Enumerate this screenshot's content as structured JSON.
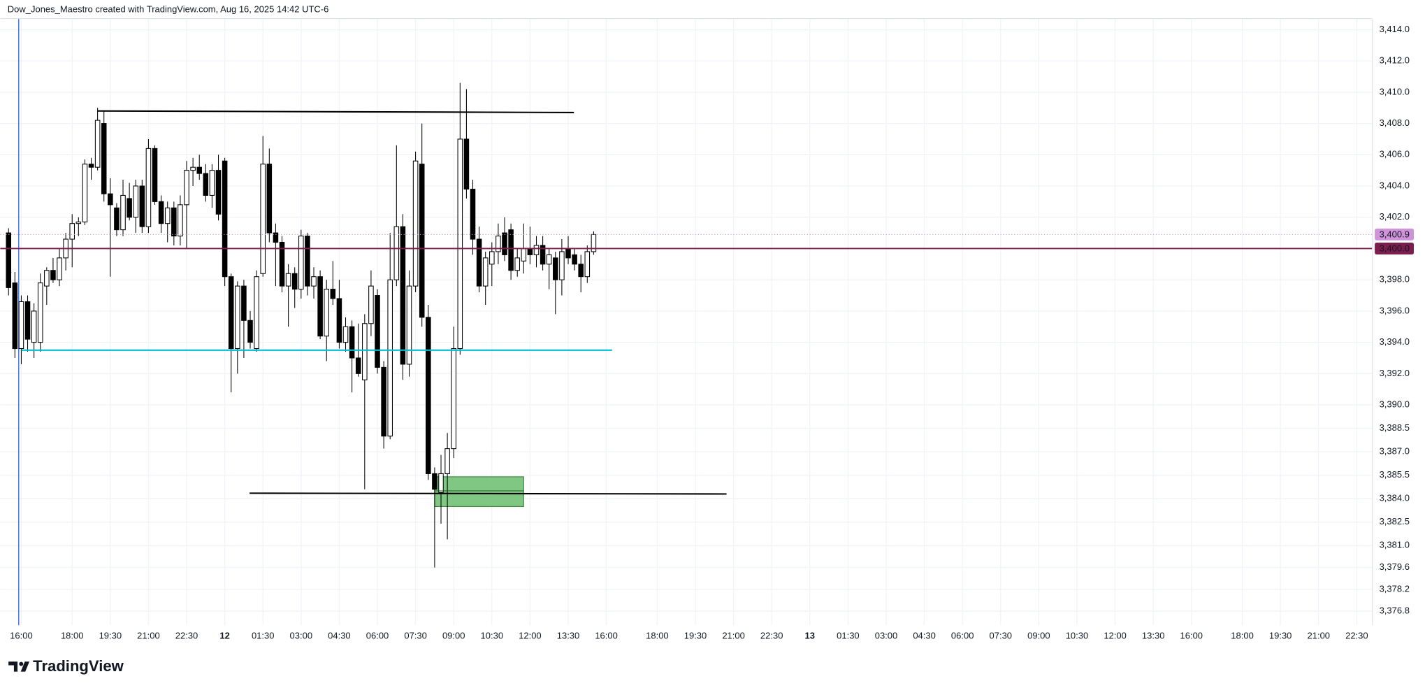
{
  "chart_data": {
    "type": "candlestick",
    "title": "Dow_Jones_Maestro created with TradingView.com, Aug 16, 2025 14:42 UTC-6",
    "footer": "TradingView",
    "xlim": [
      -1.3,
      214.4
    ],
    "ylim": [
      3375.9,
      3415.2
    ],
    "grid": true,
    "up_color": "#ffffff",
    "down_color": "#000000",
    "border_color": "#000000",
    "open": [
      3401.0,
      3397.8,
      3393.6,
      3396.6,
      3394.0,
      3394.0,
      3397.6,
      3398.6,
      3398.0,
      3399.4,
      3400.6,
      3401.6,
      3401.7,
      3405.4,
      3405.2,
      3408.0,
      3403.5,
      3402.6,
      3401.2,
      3403.2,
      3402.0,
      3404.0,
      3401.4,
      3406.4,
      3403.0,
      3401.6,
      3402.6,
      3400.8,
      3402.8,
      3405.0,
      3405.2,
      3404.8,
      3403.4,
      3405.0,
      3405.6,
      3398.2,
      3393.6,
      3397.6,
      3395.4,
      3393.6,
      3398.4,
      3405.4,
      3401.0,
      3400.4,
      3397.6,
      3398.4,
      3397.4,
      3400.8,
      3397.6,
      3398.2,
      3394.4,
      3397.4,
      3396.8,
      3394.0,
      3395.0,
      3393.0,
      3391.6,
      3395.2,
      3397.0,
      3392.4,
      3388.0,
      3398.0,
      3401.4,
      3392.6,
      3397.6,
      3405.4,
      3395.6,
      3385.6,
      3384.4,
      3385.6,
      3387.2,
      3393.6,
      3407.0,
      3403.8,
      3400.6,
      3397.6,
      3399.0,
      3399.8,
      3401.0,
      3401.2,
      3398.6,
      3399.2,
      3400.0,
      3399.6,
      3400.2,
      3399.0,
      3399.4,
      3398.0,
      3400.0,
      3399.6,
      3399.0,
      3398.2,
      3399.8
    ],
    "high": [
      3401.3,
      3398.5,
      3397.0,
      3397.0,
      3396.5,
      3398.4,
      3398.8,
      3399.4,
      3400.0,
      3401.0,
      3402.2,
      3402.0,
      3405.7,
      3405.8,
      3409.0,
      3408.8,
      3404.5,
      3402.9,
      3404.4,
      3404.2,
      3404.4,
      3404.4,
      3407.0,
      3406.6,
      3403.4,
      3403.0,
      3403.0,
      3403.4,
      3405.6,
      3405.8,
      3406.0,
      3405.4,
      3405.4,
      3406.0,
      3405.8,
      3398.4,
      3397.9,
      3398.0,
      3396.0,
      3398.6,
      3407.2,
      3406.4,
      3401.6,
      3400.8,
      3399.0,
      3398.8,
      3401.2,
      3401.0,
      3398.8,
      3398.6,
      3398.0,
      3399.2,
      3398.0,
      3395.6,
      3395.4,
      3395.2,
      3395.8,
      3398.6,
      3397.4,
      3392.8,
      3401.0,
      3406.6,
      3402.2,
      3398.6,
      3406.2,
      3408.0,
      3396.4,
      3386.0,
      3386.8,
      3388.2,
      3395.0,
      3410.6,
      3410.2,
      3404.4,
      3401.4,
      3399.8,
      3400.4,
      3401.6,
      3402.0,
      3401.6,
      3400.0,
      3401.6,
      3401.4,
      3400.8,
      3400.8,
      3400.0,
      3399.8,
      3400.6,
      3400.8,
      3400.0,
      3399.6,
      3400.2,
      3401.1
    ],
    "low": [
      3397.0,
      3393.0,
      3392.6,
      3393.4,
      3393.0,
      3393.4,
      3396.4,
      3397.8,
      3397.6,
      3398.6,
      3398.8,
      3400.8,
      3401.5,
      3404.4,
      3405.0,
      3403.0,
      3398.2,
      3400.8,
      3400.8,
      3401.8,
      3401.0,
      3401.0,
      3401.0,
      3402.8,
      3401.0,
      3400.4,
      3400.2,
      3400.2,
      3400.0,
      3404.0,
      3404.4,
      3403.0,
      3402.6,
      3401.8,
      3397.6,
      3390.8,
      3392.0,
      3393.0,
      3393.6,
      3393.4,
      3398.2,
      3400.4,
      3397.6,
      3397.2,
      3395.0,
      3396.2,
      3396.8,
      3397.0,
      3396.8,
      3394.2,
      3392.8,
      3396.4,
      3393.6,
      3393.4,
      3390.8,
      3391.8,
      3384.6,
      3394.4,
      3392.0,
      3387.2,
      3387.8,
      3397.6,
      3391.6,
      3391.8,
      3397.2,
      3395.0,
      3385.2,
      3379.6,
      3382.4,
      3381.4,
      3386.6,
      3393.2,
      3403.2,
      3399.6,
      3397.2,
      3396.4,
      3397.6,
      3399.0,
      3399.2,
      3398.0,
      3398.2,
      3398.4,
      3399.0,
      3398.8,
      3398.6,
      3397.4,
      3395.8,
      3397.0,
      3399.0,
      3398.6,
      3397.2,
      3397.8,
      3399.6
    ],
    "close": [
      3397.5,
      3393.6,
      3396.6,
      3394.2,
      3396.0,
      3397.8,
      3398.6,
      3398.0,
      3399.4,
      3400.6,
      3401.6,
      3401.7,
      3405.4,
      3405.2,
      3408.2,
      3403.5,
      3402.8,
      3401.2,
      3403.4,
      3402.0,
      3404.0,
      3401.4,
      3406.4,
      3403.0,
      3401.6,
      3402.6,
      3400.8,
      3402.8,
      3405.0,
      3405.2,
      3404.8,
      3403.4,
      3405.0,
      3402.2,
      3398.2,
      3393.6,
      3397.6,
      3395.4,
      3394.0,
      3398.2,
      3405.4,
      3401.0,
      3400.4,
      3397.6,
      3398.4,
      3397.4,
      3400.8,
      3397.6,
      3398.2,
      3394.4,
      3397.4,
      3396.8,
      3394.0,
      3395.0,
      3393.0,
      3392.0,
      3395.2,
      3397.6,
      3392.4,
      3388.0,
      3398.0,
      3401.4,
      3392.6,
      3397.6,
      3405.6,
      3395.6,
      3385.6,
      3384.6,
      3385.6,
      3387.2,
      3393.6,
      3407.0,
      3403.8,
      3400.6,
      3397.6,
      3399.4,
      3399.8,
      3400.8,
      3399.6,
      3398.6,
      3399.4,
      3400.0,
      3399.6,
      3400.2,
      3399.0,
      3399.6,
      3398.0,
      3399.8,
      3399.4,
      3399.0,
      3398.2,
      3399.8,
      3400.9
    ],
    "yticks": [
      {
        "value": 3414.0,
        "label": "3,414.0"
      },
      {
        "value": 3412.0,
        "label": "3,412.0"
      },
      {
        "value": 3410.0,
        "label": "3,410.0"
      },
      {
        "value": 3408.0,
        "label": "3,408.0"
      },
      {
        "value": 3406.0,
        "label": "3,406.0"
      },
      {
        "value": 3404.0,
        "label": "3,404.0"
      },
      {
        "value": 3402.0,
        "label": "3,402.0"
      },
      {
        "value": 3398.0,
        "label": "3,398.0"
      },
      {
        "value": 3396.0,
        "label": "3,396.0"
      },
      {
        "value": 3394.0,
        "label": "3,394.0"
      },
      {
        "value": 3392.0,
        "label": "3,392.0"
      },
      {
        "value": 3390.0,
        "label": "3,390.0"
      },
      {
        "value": 3388.5,
        "label": "3,388.5"
      },
      {
        "value": 3387.0,
        "label": "3,387.0"
      },
      {
        "value": 3385.5,
        "label": "3,385.5"
      },
      {
        "value": 3384.0,
        "label": "3,384.0"
      },
      {
        "value": 3382.5,
        "label": "3,382.5"
      },
      {
        "value": 3381.0,
        "label": "3,381.0"
      },
      {
        "value": 3379.6,
        "label": "3,379.6"
      },
      {
        "value": 3378.2,
        "label": "3,378.2"
      },
      {
        "value": 3376.8,
        "label": "3,376.8"
      }
    ],
    "xticks": [
      {
        "value": 2,
        "label": "16:00"
      },
      {
        "value": 10,
        "label": "18:00"
      },
      {
        "value": 16,
        "label": "19:30"
      },
      {
        "value": 22,
        "label": "21:00"
      },
      {
        "value": 28,
        "label": "22:30"
      },
      {
        "value": 34,
        "label": "12"
      },
      {
        "value": 40,
        "label": "01:30"
      },
      {
        "value": 46,
        "label": "03:00"
      },
      {
        "value": 52,
        "label": "04:30"
      },
      {
        "value": 58,
        "label": "06:00"
      },
      {
        "value": 64,
        "label": "07:30"
      },
      {
        "value": 70,
        "label": "09:00"
      },
      {
        "value": 76,
        "label": "10:30"
      },
      {
        "value": 82,
        "label": "12:00"
      },
      {
        "value": 88,
        "label": "13:30"
      },
      {
        "value": 94,
        "label": "16:00"
      },
      {
        "value": 102,
        "label": "18:00"
      },
      {
        "value": 108,
        "label": "19:30"
      },
      {
        "value": 114,
        "label": "21:00"
      },
      {
        "value": 120,
        "label": "22:30"
      },
      {
        "value": 126,
        "label": "13"
      },
      {
        "value": 132,
        "label": "01:30"
      },
      {
        "value": 138,
        "label": "03:00"
      },
      {
        "value": 144,
        "label": "04:30"
      },
      {
        "value": 150,
        "label": "06:00"
      },
      {
        "value": 156,
        "label": "07:30"
      },
      {
        "value": 162,
        "label": "09:00"
      },
      {
        "value": 168,
        "label": "10:30"
      },
      {
        "value": 174,
        "label": "12:00"
      },
      {
        "value": 180,
        "label": "13:30"
      },
      {
        "value": 186,
        "label": "16:00"
      },
      {
        "value": 194,
        "label": "18:00"
      },
      {
        "value": 200,
        "label": "19:30"
      },
      {
        "value": 206,
        "label": "21:00"
      },
      {
        "value": 212,
        "label": "22:30"
      }
    ],
    "price_lines": [
      {
        "value": 3400.9,
        "label": "3,400.9",
        "color": "#ce93d8",
        "dashed": true
      },
      {
        "value": 3400.0,
        "label": "3,400.0",
        "color": "#7b1e4e",
        "dashed": false
      }
    ],
    "trend_lines": [
      {
        "x": [
          14,
          88.9
        ],
        "y": [
          3408.8,
          3408.7
        ],
        "color": "#000000"
      },
      {
        "x": [
          2,
          94.9
        ],
        "y": [
          3393.5,
          3393.5
        ],
        "color": "#00bcd4"
      },
      {
        "x": [
          37.9,
          112.9
        ],
        "y": [
          3384.35,
          3384.3
        ],
        "color": "#000000"
      }
    ],
    "vertical_line": {
      "x": 1.6,
      "color": "#2962ff"
    },
    "box": {
      "x": [
        67,
        81
      ],
      "y": [
        3383.5,
        3385.4
      ],
      "mid": 3384.5,
      "color": "#81c784"
    }
  }
}
